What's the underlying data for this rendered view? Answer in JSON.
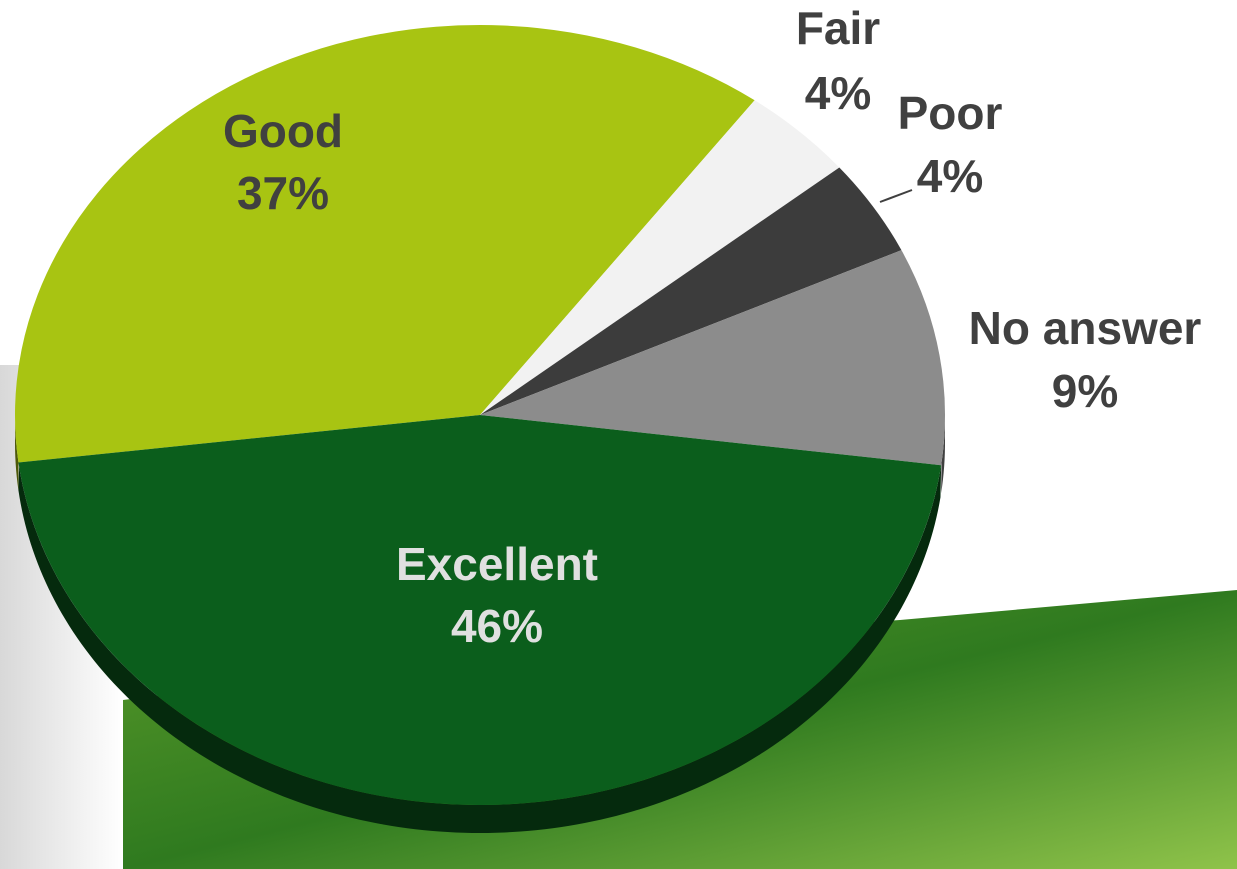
{
  "chart_data": {
    "type": "pie",
    "categories": [
      "Good",
      "Fair",
      "Poor",
      "No answer",
      "Excellent"
    ],
    "values": [
      37,
      4,
      4,
      9,
      46
    ],
    "value_labels": [
      "37%",
      "4%",
      "4%",
      "9%",
      "46%"
    ],
    "colors": [
      "#a8c412",
      "#f2f2f2",
      "#3c3c3c",
      "#8c8c8c",
      "#0b5e1c"
    ]
  }
}
